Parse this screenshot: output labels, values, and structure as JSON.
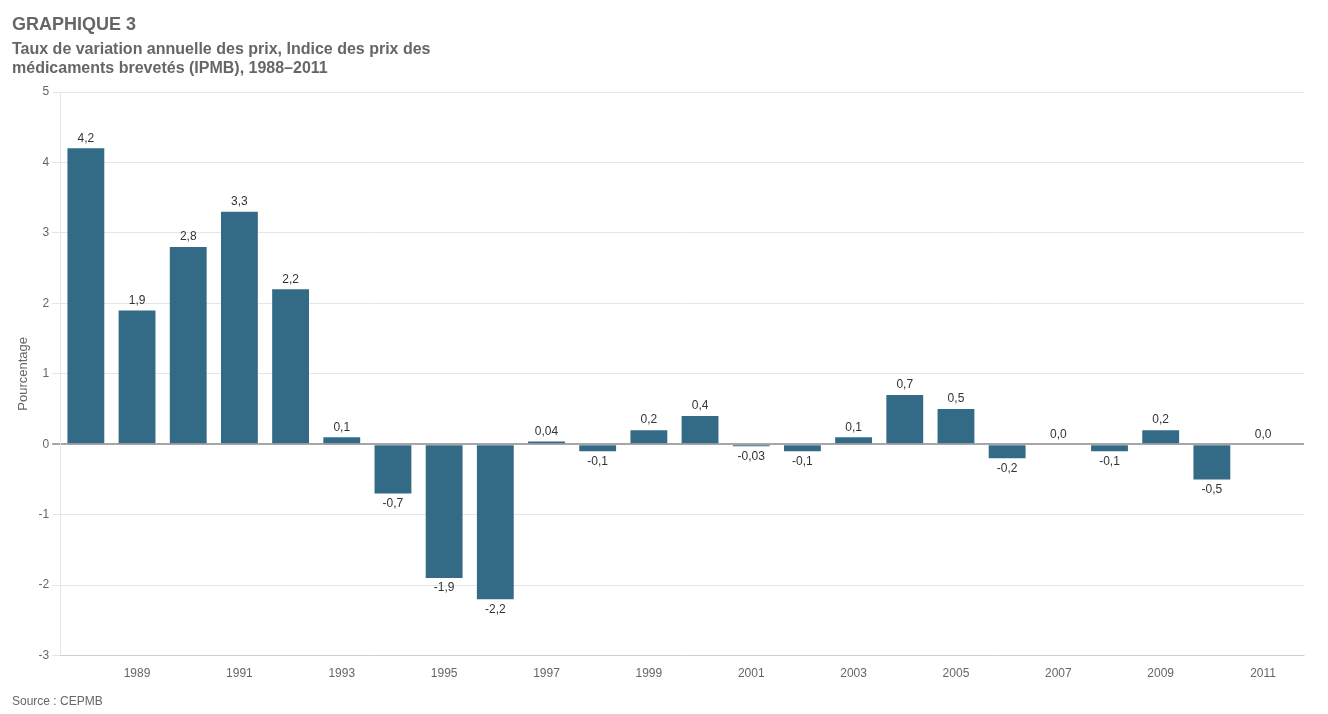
{
  "chart_data": {
    "type": "bar",
    "title": "GRAPHIQUE 3",
    "subtitle": "Taux de variation annuelle des prix, Indice des prix des\nmédicaments brevetés (IPMB), 1988–2011",
    "ylabel": "Pourcentage",
    "annotations": [
      "Source : CEPMB"
    ],
    "x": [
      1988,
      1989,
      1990,
      1991,
      1992,
      1993,
      1994,
      1995,
      1996,
      1997,
      1998,
      1999,
      2000,
      2001,
      2002,
      2003,
      2004,
      2005,
      2006,
      2007,
      2008,
      2009,
      2010,
      2011
    ],
    "values": [
      4.2,
      1.9,
      2.8,
      3.3,
      2.2,
      0.1,
      -0.7,
      -1.9,
      -2.2,
      0.04,
      -0.1,
      0.2,
      0.4,
      -0.03,
      -0.1,
      0.1,
      0.7,
      0.5,
      -0.2,
      0.0,
      -0.1,
      0.2,
      -0.5,
      0.0
    ],
    "value_labels": [
      "4,2",
      "1,9",
      "2,8",
      "3,3",
      "2,2",
      "0,1",
      "-0,7",
      "-1,9",
      "-2,2",
      "0,04",
      "-0,1",
      "0,2",
      "0,4",
      "-0,03",
      "-0,1",
      "0,1",
      "0,7",
      "0,5",
      "-0,2",
      "0,0",
      "-0,1",
      "0,2",
      "-0,5",
      "0,0"
    ],
    "data_labels": true,
    "color": "#336b87",
    "xlim": [
      1987.5,
      2011.8
    ],
    "xticks": [
      1989,
      1991,
      1993,
      1995,
      1997,
      1999,
      2001,
      2003,
      2005,
      2007,
      2009,
      2011
    ],
    "ylim": [
      -3,
      5
    ],
    "yticks": [
      -3,
      -2,
      -1,
      0,
      1,
      2,
      3,
      4,
      5
    ],
    "grid": true
  }
}
